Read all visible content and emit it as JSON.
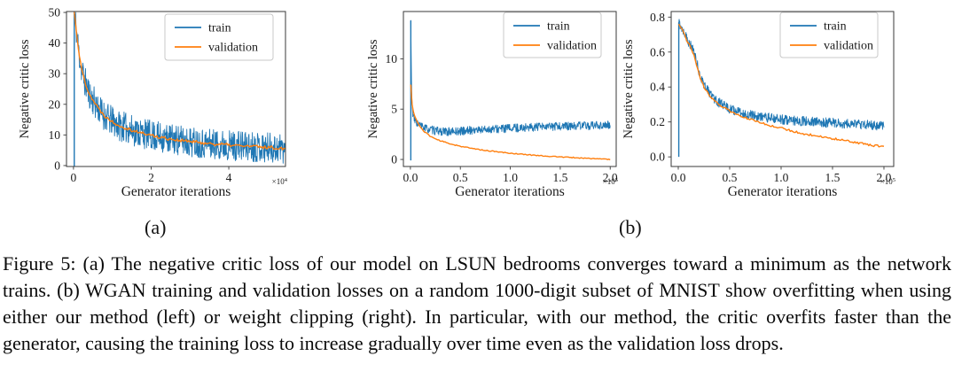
{
  "figure": {
    "sublabels": {
      "a": "(a)",
      "b": "(b)"
    },
    "caption": "Figure 5: (a) The negative critic loss of our model on LSUN bedrooms converges toward a minimum as the network trains. (b) WGAN training and validation losses on a random 1000-digit subset of MNIST show overfitting when using either our method (left) or weight clipping (right). In particular, with our method, the critic overfits faster than the generator, causing the training loss to increase gradually over time even as the validation loss drops."
  },
  "colors": {
    "train": "#1f77b4",
    "validation": "#ff7f0e",
    "axes": "#3a3a3a"
  },
  "chart_data": [
    {
      "id": "lsun-loss",
      "type": "line",
      "title": "",
      "xlabel": "Generator iterations",
      "ylabel": "Negative critic loss",
      "x_offset": {
        "base": "×10",
        "exp": "4"
      },
      "xlim": [
        -0.18,
        5.46
      ],
      "ylim": [
        -0.3,
        50.3
      ],
      "xticks": [
        0,
        2,
        4
      ],
      "xtick_labels": [
        "0",
        "2",
        "4"
      ],
      "yticks": [
        0,
        10,
        20,
        30,
        40,
        50
      ],
      "ytick_labels": [
        "0",
        "10",
        "20",
        "30",
        "40",
        "50"
      ],
      "grid": false,
      "legend": {
        "position": "upper-right",
        "entries": [
          {
            "label": "train",
            "color": "#1f77b4"
          },
          {
            "label": "validation",
            "color": "#ff7f0e"
          }
        ]
      },
      "spike": {
        "x": 0.02,
        "from": -0.3,
        "to": 50.3,
        "color": "#1f77b4"
      },
      "series": [
        {
          "name": "train",
          "color": "#1f77b4",
          "dense": true,
          "noise": 5,
          "seed": 11,
          "x": [
            0.02,
            0.06,
            0.1,
            0.15,
            0.2,
            0.28,
            0.36,
            0.45,
            0.55,
            0.65,
            0.75,
            0.85,
            0.95,
            1.05,
            1.2,
            1.35,
            1.5,
            1.7,
            1.9,
            2.1,
            2.3,
            2.5,
            2.7,
            2.9,
            3.1,
            3.3,
            3.5,
            3.7,
            3.9,
            4.1,
            4.3,
            4.5,
            4.7,
            4.9,
            5.1,
            5.3,
            5.45
          ],
          "y": [
            50,
            46,
            41,
            36,
            32,
            28,
            25,
            22.5,
            20.5,
            18.5,
            17,
            15.8,
            14.8,
            14,
            13,
            12.3,
            11.6,
            10.8,
            10.2,
            9.6,
            9.1,
            8.7,
            8.3,
            8,
            7.7,
            7.5,
            7.2,
            7,
            6.8,
            6.6,
            6.5,
            6.3,
            6.2,
            6,
            5.9,
            5.7,
            5.6
          ]
        },
        {
          "name": "validation",
          "color": "#ff7f0e",
          "dense": false,
          "noise": 0.55,
          "seed": 22,
          "x": [
            0.02,
            0.06,
            0.1,
            0.15,
            0.2,
            0.28,
            0.36,
            0.45,
            0.55,
            0.65,
            0.75,
            0.85,
            0.95,
            1.05,
            1.2,
            1.35,
            1.5,
            1.7,
            1.9,
            2.1,
            2.3,
            2.5,
            2.7,
            2.9,
            3.1,
            3.3,
            3.5,
            3.7,
            3.9,
            4.1,
            4.3,
            4.5,
            4.7,
            4.9,
            5.1,
            5.3,
            5.45
          ],
          "y": [
            50,
            46,
            41,
            36,
            32,
            28,
            25,
            22.5,
            20.5,
            18.5,
            17,
            15.8,
            14.8,
            14,
            13,
            12.3,
            11.6,
            10.8,
            10.2,
            9.6,
            9.1,
            8.7,
            8.3,
            8,
            7.7,
            7.5,
            7.2,
            7,
            6.8,
            6.6,
            6.5,
            6.3,
            6.2,
            6,
            5.9,
            5.7,
            5.6
          ]
        }
      ]
    },
    {
      "id": "mnist-our-method-loss",
      "type": "line",
      "title": "",
      "xlabel": "Generator iterations",
      "ylabel": "Negative critic loss",
      "x_offset": {
        "base": "×10",
        "exp": "5"
      },
      "xlim": [
        -0.07,
        2.06
      ],
      "ylim": [
        -0.7,
        14.7
      ],
      "xticks": [
        0,
        0.5,
        1,
        1.5,
        2
      ],
      "xtick_labels": [
        "0.0",
        "0.5",
        "1.0",
        "1.5",
        "2.0"
      ],
      "yticks": [
        0,
        5,
        10
      ],
      "ytick_labels": [
        "0",
        "5",
        "10"
      ],
      "grid": false,
      "legend": {
        "position": "upper-right",
        "entries": [
          {
            "label": "train",
            "color": "#1f77b4"
          },
          {
            "label": "validation",
            "color": "#ff7f0e"
          }
        ]
      },
      "spike": {
        "x": 0.004,
        "from": -0.1,
        "to": 13.8,
        "color": "#1f77b4"
      },
      "series": [
        {
          "name": "train",
          "color": "#1f77b4",
          "dense": true,
          "noise": 0.42,
          "seed": 33,
          "x": [
            0.004,
            0.01,
            0.02,
            0.04,
            0.07,
            0.1,
            0.15,
            0.2,
            0.25,
            0.3,
            0.35,
            0.4,
            0.5,
            0.6,
            0.7,
            0.8,
            0.9,
            1,
            1.1,
            1.2,
            1.3,
            1.4,
            1.5,
            1.6,
            1.7,
            1.8,
            1.9,
            2
          ],
          "y": [
            13.8,
            8,
            4.6,
            3.9,
            3.6,
            3.35,
            3.1,
            2.95,
            2.85,
            2.8,
            2.75,
            2.75,
            2.8,
            2.9,
            2.95,
            3,
            3.05,
            3.1,
            3.15,
            3.2,
            3.2,
            3.25,
            3.3,
            3.3,
            3.35,
            3.35,
            3.4,
            3.4
          ]
        },
        {
          "name": "validation",
          "color": "#ff7f0e",
          "dense": false,
          "noise": 0.05,
          "seed": 44,
          "x": [
            0.004,
            0.01,
            0.02,
            0.04,
            0.07,
            0.1,
            0.13,
            0.16,
            0.2,
            0.25,
            0.3,
            0.4,
            0.5,
            0.6,
            0.7,
            0.8,
            0.9,
            1,
            1.1,
            1.2,
            1.3,
            1.4,
            1.5,
            1.6,
            1.7,
            1.8,
            1.9,
            2
          ],
          "y": [
            7.4,
            6.2,
            5.2,
            4.35,
            3.7,
            3.2,
            2.85,
            2.6,
            2.3,
            2.05,
            1.85,
            1.55,
            1.32,
            1.12,
            0.97,
            0.84,
            0.72,
            0.62,
            0.53,
            0.45,
            0.38,
            0.31,
            0.25,
            0.2,
            0.15,
            0.1,
            0.05,
            0
          ]
        }
      ]
    },
    {
      "id": "mnist-weight-clipping-loss",
      "type": "line",
      "title": "",
      "xlabel": "Generator iterations",
      "ylabel": "Negative critic loss",
      "x_offset": {
        "base": "×10",
        "exp": "5"
      },
      "xlim": [
        -0.069,
        2.095
      ],
      "ylim": [
        -0.055,
        0.832
      ],
      "xticks": [
        0,
        0.5,
        1,
        1.5,
        2
      ],
      "xtick_labels": [
        "0.0",
        "0.5",
        "1.0",
        "1.5",
        "2.0"
      ],
      "yticks": [
        0,
        0.2,
        0.4,
        0.6,
        0.8
      ],
      "ytick_labels": [
        "0.0",
        "0.2",
        "0.4",
        "0.6",
        "0.8"
      ],
      "grid": false,
      "legend": {
        "position": "upper-right",
        "entries": [
          {
            "label": "train",
            "color": "#1f77b4"
          },
          {
            "label": "validation",
            "color": "#ff7f0e"
          }
        ]
      },
      "spike": {
        "x": 0.005,
        "from": 0,
        "to": 0.77,
        "color": "#1f77b4"
      },
      "series": [
        {
          "name": "train",
          "color": "#1f77b4",
          "dense": true,
          "noise": 0.028,
          "seed": 55,
          "x": [
            0.005,
            0.03,
            0.06,
            0.09,
            0.12,
            0.15,
            0.18,
            0.21,
            0.25,
            0.3,
            0.35,
            0.4,
            0.45,
            0.5,
            0.6,
            0.7,
            0.8,
            0.9,
            1,
            1.1,
            1.2,
            1.3,
            1.4,
            1.5,
            1.6,
            1.7,
            1.8,
            1.9,
            2
          ],
          "y": [
            0.77,
            0.745,
            0.715,
            0.67,
            0.64,
            0.6,
            0.54,
            0.47,
            0.415,
            0.37,
            0.335,
            0.31,
            0.29,
            0.275,
            0.253,
            0.24,
            0.228,
            0.222,
            0.215,
            0.21,
            0.205,
            0.2,
            0.198,
            0.195,
            0.19,
            0.188,
            0.185,
            0.182,
            0.18
          ]
        },
        {
          "name": "validation",
          "color": "#ff7f0e",
          "dense": false,
          "noise": 0.006,
          "seed": 66,
          "x": [
            0.005,
            0.03,
            0.06,
            0.09,
            0.12,
            0.15,
            0.18,
            0.21,
            0.25,
            0.3,
            0.35,
            0.4,
            0.45,
            0.5,
            0.6,
            0.7,
            0.8,
            0.9,
            1,
            1.1,
            1.2,
            1.3,
            1.4,
            1.5,
            1.6,
            1.7,
            1.8,
            1.9,
            2
          ],
          "y": [
            0.765,
            0.74,
            0.7,
            0.66,
            0.635,
            0.585,
            0.52,
            0.455,
            0.4,
            0.355,
            0.325,
            0.3,
            0.28,
            0.262,
            0.235,
            0.215,
            0.195,
            0.18,
            0.165,
            0.15,
            0.135,
            0.125,
            0.115,
            0.105,
            0.095,
            0.085,
            0.075,
            0.065,
            0.058
          ]
        }
      ]
    }
  ]
}
